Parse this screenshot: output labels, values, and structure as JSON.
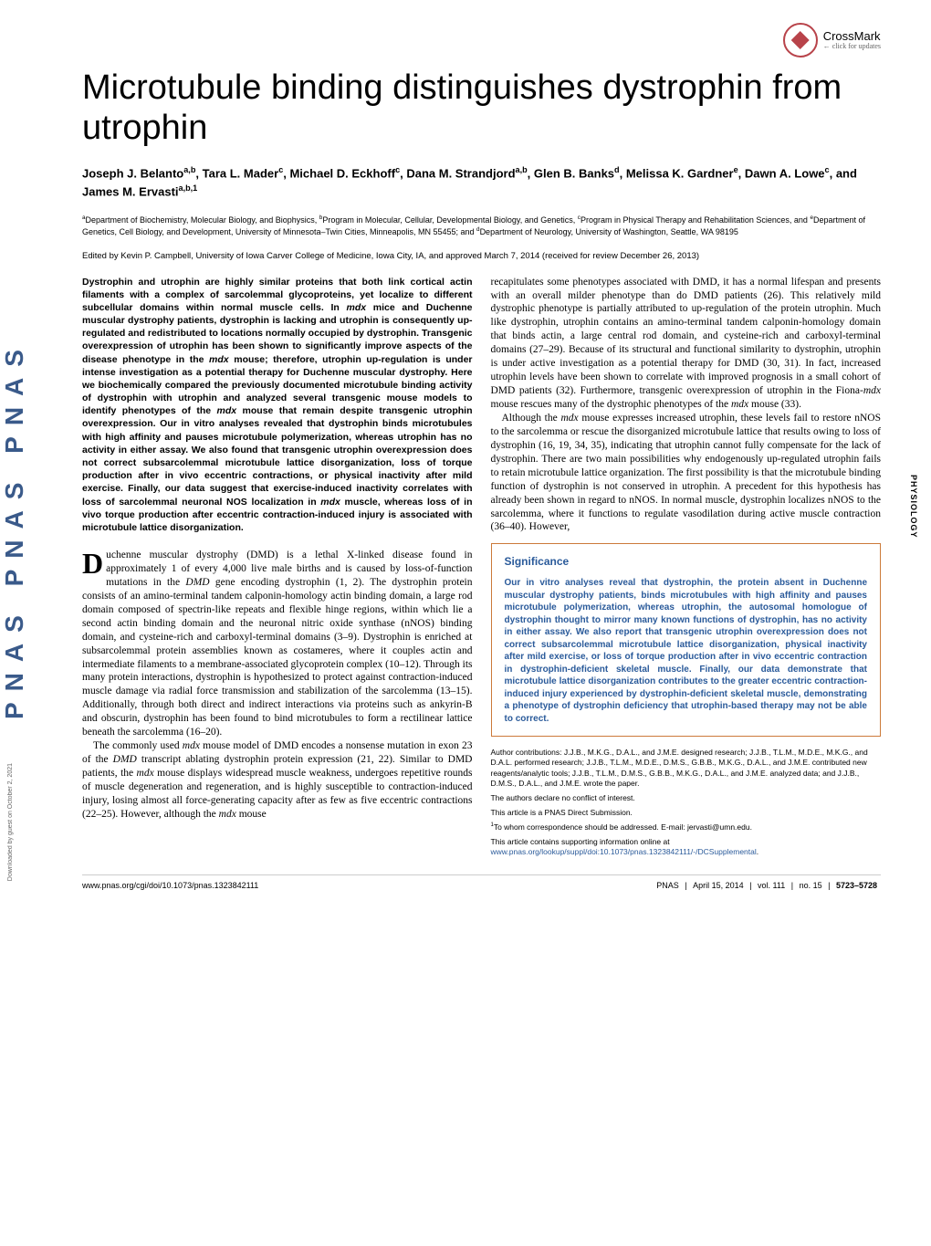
{
  "crossmark": {
    "label": "CrossMark",
    "sub": "← click for updates"
  },
  "title": "Microtubule binding distinguishes dystrophin from utrophin",
  "authors_html": "Joseph J. Belanto<sup>a,b</sup>, Tara L. Mader<sup>c</sup>, Michael D. Eckhoff<sup>c</sup>, Dana M. Strandjord<sup>a,b</sup>, Glen B. Banks<sup>d</sup>, Melissa K. Gardner<sup>e</sup>, Dawn A. Lowe<sup>c</sup>, and James M. Ervasti<sup>a,b,1</sup>",
  "affiliations_html": "<sup>a</sup>Department of Biochemistry, Molecular Biology, and Biophysics, <sup>b</sup>Program in Molecular, Cellular, Developmental Biology, and Genetics, <sup>c</sup>Program in Physical Therapy and Rehabilitation Sciences, and <sup>e</sup>Department of Genetics, Cell Biology, and Development, University of Minnesota–Twin Cities, Minneapolis, MN 55455; and <sup>d</sup>Department of Neurology, University of Washington, Seattle, WA 98195",
  "edited": "Edited by Kevin P. Campbell, University of Iowa Carver College of Medicine, Iowa City, IA, and approved March 7, 2014 (received for review December 26, 2013)",
  "abstract_html": "Dystrophin and utrophin are highly similar proteins that both link cortical actin filaments with a complex of sarcolemmal glycoproteins, yet localize to different subcellular domains within normal muscle cells. In <i>mdx</i> mice and Duchenne muscular dystrophy patients, dystrophin is lacking and utrophin is consequently up-regulated and redistributed to locations normally occupied by dystrophin. Transgenic overexpression of utrophin has been shown to significantly improve aspects of the disease phenotype in the <i>mdx</i> mouse; therefore, utrophin up-regulation is under intense investigation as a potential therapy for Duchenne muscular dystrophy. Here we biochemically compared the previously documented microtubule binding activity of dystrophin with utrophin and analyzed several transgenic mouse models to identify phenotypes of the <i>mdx</i> mouse that remain despite transgenic utrophin overexpression. Our in vitro analyses revealed that dystrophin binds microtubules with high affinity and pauses microtubule polymerization, whereas utrophin has no activity in either assay. We also found that transgenic utrophin overexpression does not correct subsarcolemmal microtubule lattice disorganization, loss of torque production after in vivo eccentric contractions, or physical inactivity after mild exercise. Finally, our data suggest that exercise-induced inactivity correlates with loss of sarcolemmal neuronal NOS localization in <i>mdx</i> muscle, whereas loss of in vivo torque production after eccentric contraction-induced injury is associated with microtubule lattice disorganization.",
  "left_body_html": "<p><span class=\"dropcap\">D</span>uchenne muscular dystrophy (DMD) is a lethal X-linked disease found in approximately 1 of every 4,000 live male births and is caused by loss-of-function mutations in the <i>DMD</i> gene encoding dystrophin (1, 2). The dystrophin protein consists of an amino-terminal tandem calponin-homology actin binding domain, a large rod domain composed of spectrin-like repeats and flexible hinge regions, within which lie a second actin binding domain and the neuronal nitric oxide synthase (nNOS) binding domain, and cysteine-rich and carboxyl-terminal domains (3–9). Dystrophin is enriched at subsarcolemmal protein assemblies known as costameres, where it couples actin and intermediate filaments to a membrane-associated glycoprotein complex (10–12). Through its many protein interactions, dystrophin is hypothesized to protect against contraction-induced muscle damage via radial force transmission and stabilization of the sarcolemma (13–15). Additionally, through both direct and indirect interactions via proteins such as ankyrin-B and obscurin, dystrophin has been found to bind microtubules to form a rectilinear lattice beneath the sarcolemma (16–20).</p><p>The commonly used <i>mdx</i> mouse model of DMD encodes a nonsense mutation in exon 23 of the <i>DMD</i> transcript ablating dystrophin protein expression (21, 22). Similar to DMD patients, the <i>mdx</i> mouse displays widespread muscle weakness, undergoes repetitive rounds of muscle degeneration and regeneration, and is highly susceptible to contraction-induced injury, losing almost all force-generating capacity after as few as five eccentric contractions (22–25). However, although the <i>mdx</i> mouse</p>",
  "right_body_html": "<p style=\"text-indent:0\">recapitulates some phenotypes associated with DMD, it has a normal lifespan and presents with an overall milder phenotype than do DMD patients (26). This relatively mild dystrophic phenotype is partially attributed to up-regulation of the protein utrophin. Much like dystrophin, utrophin contains an amino-terminal tandem calponin-homology domain that binds actin, a large central rod domain, and cysteine-rich and carboxyl-terminal domains (27–29). Because of its structural and functional similarity to dystrophin, utrophin is under active investigation as a potential therapy for DMD (30, 31). In fact, increased utrophin levels have been shown to correlate with improved prognosis in a small cohort of DMD patients (32). Furthermore, transgenic overexpression of utrophin in the Fiona-<i>mdx</i> mouse rescues many of the dystrophic phenotypes of the <i>mdx</i> mouse (33).</p><p>Although the <i>mdx</i> mouse expresses increased utrophin, these levels fail to restore nNOS to the sarcolemma or rescue the disorganized microtubule lattice that results owing to loss of dystrophin (16, 19, 34, 35), indicating that utrophin cannot fully compensate for the lack of dystrophin. There are two main possibilities why endogenously up-regulated utrophin fails to retain microtubule lattice organization. The first possibility is that the microtubule binding function of dystrophin is not conserved in utrophin. A precedent for this hypothesis has already been shown in regard to nNOS. In normal muscle, dystrophin localizes nNOS to the sarcolemma, where it functions to regulate vasodilation during active muscle contraction (36–40). However,</p>",
  "significance": {
    "title": "Significance",
    "body": "Our in vitro analyses reveal that dystrophin, the protein absent in Duchenne muscular dystrophy patients, binds microtubules with high affinity and pauses microtubule polymerization, whereas utrophin, the autosomal homologue of dystrophin thought to mirror many known functions of dystrophin, has no activity in either assay. We also report that transgenic utrophin overexpression does not correct subsarcolemmal microtubule lattice disorganization, physical inactivity after mild exercise, or loss of torque production after in vivo eccentric contraction in dystrophin-deficient skeletal muscle. Finally, our data demonstrate that microtubule lattice disorganization contributes to the greater eccentric contraction-induced injury experienced by dystrophin-deficient skeletal muscle, demonstrating a phenotype of dystrophin deficiency that utrophin-based therapy may not be able to correct."
  },
  "footnotes": {
    "contrib": "Author contributions: J.J.B., M.K.G., D.A.L., and J.M.E. designed research; J.J.B., T.L.M., M.D.E., M.K.G., and D.A.L. performed research; J.J.B., T.L.M., M.D.E., D.M.S., G.B.B., M.K.G., D.A.L., and J.M.E. contributed new reagents/analytic tools; J.J.B., T.L.M., D.M.S., G.B.B., M.K.G., D.A.L., and J.M.E. analyzed data; and J.J.B., D.M.S., D.A.L., and J.M.E. wrote the paper.",
    "conflict": "The authors declare no conflict of interest.",
    "direct": "This article is a PNAS Direct Submission.",
    "corr": "To whom correspondence should be addressed. E-mail: jervasti@umn.edu.",
    "supp_prefix": "This article contains supporting information online at ",
    "supp_link": "www.pnas.org/lookup/suppl/doi:10.1073/pnas.1323842111/-/DCSupplemental",
    "supp_suffix": "."
  },
  "footer": {
    "doi": "www.pnas.org/cgi/doi/10.1073/pnas.1323842111",
    "journal": "PNAS",
    "date": "April 15, 2014",
    "vol": "vol. 111",
    "no": "no. 15",
    "pages": "5723–5728"
  },
  "side_tab": "PHYSIOLOGY",
  "sidebar_logo": "PNAS  PNAS  PNAS",
  "download_note": "Downloaded by guest on October 2, 2021",
  "colors": {
    "accent_blue": "#2a5a9a",
    "sig_border": "#cc7a3a",
    "crossmark_red": "#b8434a"
  }
}
